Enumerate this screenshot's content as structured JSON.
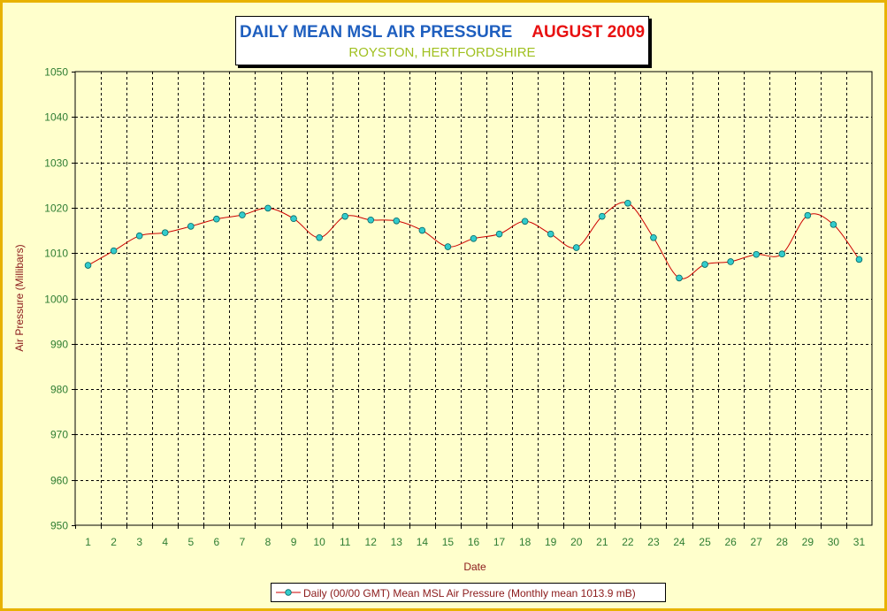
{
  "title": {
    "main": "DAILY MEAN MSL AIR PRESSURE",
    "month": "AUGUST 2009",
    "subtitle": "ROYSTON, HERTFORDSHIRE"
  },
  "colors": {
    "frame_border": "#e8b200",
    "plot_area": "#ffffcc",
    "title_main": "#1f5fbf",
    "title_month": "#e81010",
    "subtitle": "#a0c020",
    "tick_labels": "#2e7d32",
    "axis_titles": "#8b1a1a",
    "series_line": "#cc0000",
    "marker_fill": "#33cccc"
  },
  "chart_data": {
    "type": "line",
    "title": "DAILY MEAN MSL AIR PRESSURE    AUGUST 2009",
    "subtitle": "ROYSTON, HERTFORDSHIRE",
    "xlabel": "Date",
    "ylabel": "Air Pressure (Millibars)",
    "ylim": [
      950,
      1050
    ],
    "yticks": [
      950,
      960,
      970,
      980,
      990,
      1000,
      1010,
      1020,
      1030,
      1040,
      1050
    ],
    "categories": [
      1,
      2,
      3,
      4,
      5,
      6,
      7,
      8,
      9,
      10,
      11,
      12,
      13,
      14,
      15,
      16,
      17,
      18,
      19,
      20,
      21,
      22,
      23,
      24,
      25,
      26,
      27,
      28,
      29,
      30,
      31
    ],
    "grid": true,
    "legend_position": "bottom",
    "series": [
      {
        "name": "Daily (00/00 GMT) Mean MSL Air Pressure (Monthly mean 1013.9 mB)",
        "values": [
          1007.3,
          1010.5,
          1013.8,
          1014.5,
          1015.9,
          1017.5,
          1018.4,
          1019.9,
          1017.6,
          1013.4,
          1018.1,
          1017.3,
          1017.1,
          1015.0,
          1011.4,
          1013.2,
          1014.2,
          1017.0,
          1014.2,
          1011.2,
          1018.1,
          1021.0,
          1013.4,
          1004.5,
          1007.5,
          1008.1,
          1009.7,
          1009.8,
          1018.3,
          1016.3,
          1008.6
        ]
      }
    ]
  }
}
